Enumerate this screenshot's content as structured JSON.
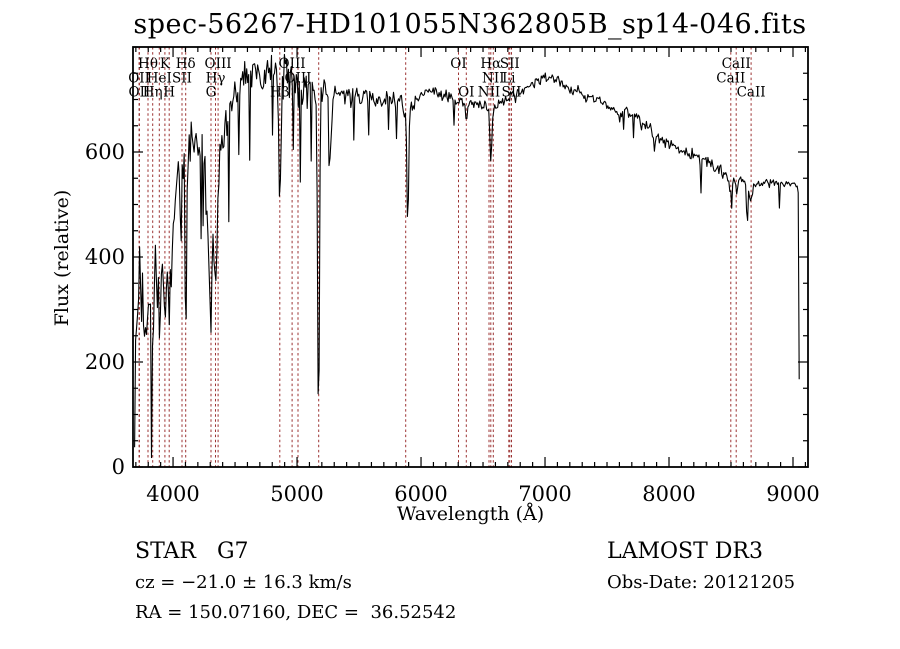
{
  "colors": {
    "background": "#ffffff",
    "spectrum": "#000000",
    "axis": "#000000",
    "line_marker": "#9c3333",
    "text": "#000000"
  },
  "footer": {
    "star_class": "STAR   G7",
    "cz": "cz = −21.0 ± 16.3 km/s",
    "radec": "RA = 150.07160, DEC =  36.52542",
    "survey": "LAMOST DR3",
    "obs_date": "Obs-Date: 20121205"
  },
  "chart_data": {
    "type": "line",
    "title": "spec-56267-HD101055N362805B_sp14-046.fits",
    "xlabel": "Wavelength (Å)",
    "ylabel": "Flux (relative)",
    "xlim": [
      3677,
      9121
    ],
    "ylim": [
      0,
      800
    ],
    "xticks": [
      4000,
      5000,
      6000,
      7000,
      8000,
      9000
    ],
    "yticks": [
      0,
      200,
      400,
      600
    ],
    "x_minor_step": 100,
    "y_minor_step": 50,
    "grid": false,
    "legend": false,
    "spectral_lines": [
      {
        "wavelength": 3726,
        "label": "OII",
        "row": 2
      },
      {
        "wavelength": 3729,
        "label": "OII",
        "row": 3
      },
      {
        "wavelength": 3798,
        "label": "Hθ",
        "row": 1
      },
      {
        "wavelength": 3836,
        "label": "Hη",
        "row": 3
      },
      {
        "wavelength": 3889,
        "label": "HeI",
        "row": 2
      },
      {
        "wavelength": 3934,
        "label": "K",
        "row": 1
      },
      {
        "wavelength": 3969,
        "label": "H",
        "row": 3
      },
      {
        "wavelength": 4072,
        "label": "SII",
        "row": 2
      },
      {
        "wavelength": 4102,
        "label": "Hδ",
        "row": 1
      },
      {
        "wavelength": 4306,
        "label": "G",
        "row": 3
      },
      {
        "wavelength": 4342,
        "label": "Hγ",
        "row": 2
      },
      {
        "wavelength": 4363,
        "label": "OIII",
        "row": 1
      },
      {
        "wavelength": 4861,
        "label": "Hβ",
        "row": 3
      },
      {
        "wavelength": 4960,
        "label": "OIII",
        "row": 1
      },
      {
        "wavelength": 5008,
        "label": "OIII",
        "row": 2
      },
      {
        "wavelength": 5175,
        "label": "",
        "row": 0
      },
      {
        "wavelength": 5876,
        "label": "",
        "row": 0
      },
      {
        "wavelength": 6302,
        "label": "OI",
        "row": 1
      },
      {
        "wavelength": 6365,
        "label": "OI",
        "row": 3
      },
      {
        "wavelength": 6548,
        "label": "NII",
        "row": 3
      },
      {
        "wavelength": 6563,
        "label": "Hα",
        "row": 1
      },
      {
        "wavelength": 6583,
        "label": "NII",
        "row": 2
      },
      {
        "wavelength": 6708,
        "label": "Li",
        "row": 2
      },
      {
        "wavelength": 6716,
        "label": "SII",
        "row": 1
      },
      {
        "wavelength": 6730,
        "label": "SII",
        "row": 3
      },
      {
        "wavelength": 8498,
        "label": "CaII",
        "row": 2
      },
      {
        "wavelength": 8542,
        "label": "CaII",
        "row": 1
      },
      {
        "wavelength": 8662,
        "label": "CaII",
        "row": 3
      }
    ],
    "series": [
      {
        "name": "spectrum",
        "color": "#000000",
        "note": "noisy stellar spectrum; anchors are [wavelength_A, flux_envelope, noise_sigma] estimates read from the plot",
        "anchors": [
          [
            3690,
            40,
            10
          ],
          [
            3698,
            280,
            85
          ],
          [
            3715,
            310,
            90
          ],
          [
            3740,
            330,
            90
          ],
          [
            3762,
            300,
            88
          ],
          [
            3785,
            270,
            85
          ],
          [
            3798,
            250,
            82
          ],
          [
            3815,
            320,
            80
          ],
          [
            3836,
            240,
            78
          ],
          [
            3858,
            350,
            72
          ],
          [
            3880,
            300,
            68
          ],
          [
            3896,
            280,
            65
          ],
          [
            3912,
            390,
            60
          ],
          [
            3934,
            265,
            58
          ],
          [
            3950,
            380,
            56
          ],
          [
            3969,
            280,
            55
          ],
          [
            3988,
            400,
            58
          ],
          [
            4010,
            480,
            55
          ],
          [
            4040,
            560,
            50
          ],
          [
            4070,
            600,
            46
          ],
          [
            4090,
            580,
            45
          ],
          [
            4102,
            170,
            40
          ],
          [
            4116,
            590,
            45
          ],
          [
            4150,
            615,
            45
          ],
          [
            4200,
            612,
            45
          ],
          [
            4250,
            600,
            45
          ],
          [
            4285,
            430,
            48
          ],
          [
            4306,
            240,
            45
          ],
          [
            4324,
            500,
            45
          ],
          [
            4342,
            300,
            42
          ],
          [
            4362,
            540,
            40
          ],
          [
            4400,
            625,
            38
          ],
          [
            4450,
            672,
            36
          ],
          [
            4500,
            712,
            35
          ],
          [
            4555,
            742,
            34
          ],
          [
            4610,
            748,
            34
          ],
          [
            4670,
            752,
            34
          ],
          [
            4730,
            756,
            33
          ],
          [
            4790,
            758,
            33
          ],
          [
            4845,
            745,
            30
          ],
          [
            4861,
            480,
            26
          ],
          [
            4880,
            742,
            30
          ],
          [
            4925,
            750,
            32
          ],
          [
            4970,
            740,
            38
          ],
          [
            5015,
            735,
            38
          ],
          [
            5060,
            730,
            38
          ],
          [
            5110,
            722,
            36
          ],
          [
            5158,
            700,
            26
          ],
          [
            5172,
            60,
            20
          ],
          [
            5190,
            700,
            25
          ],
          [
            5230,
            712,
            24
          ],
          [
            5255,
            702,
            22
          ],
          [
            5268,
            560,
            22
          ],
          [
            5286,
            704,
            22
          ],
          [
            5320,
            710,
            21
          ],
          [
            5380,
            710,
            20
          ],
          [
            5450,
            708,
            19
          ],
          [
            5520,
            706,
            18
          ],
          [
            5600,
            704,
            17
          ],
          [
            5680,
            701,
            17
          ],
          [
            5760,
            700,
            16
          ],
          [
            5840,
            696,
            15
          ],
          [
            5880,
            660,
            14
          ],
          [
            5893,
            420,
            12
          ],
          [
            5908,
            680,
            14
          ],
          [
            5970,
            706,
            14
          ],
          [
            6040,
            712,
            14
          ],
          [
            6110,
            714,
            14
          ],
          [
            6180,
            710,
            14
          ],
          [
            6250,
            702,
            13
          ],
          [
            6310,
            694,
            13
          ],
          [
            6355,
            690,
            13
          ],
          [
            6366,
            658,
            12
          ],
          [
            6380,
            688,
            13
          ],
          [
            6450,
            694,
            13
          ],
          [
            6520,
            688,
            12
          ],
          [
            6548,
            668,
            12
          ],
          [
            6563,
            575,
            11
          ],
          [
            6582,
            678,
            12
          ],
          [
            6640,
            694,
            12
          ],
          [
            6700,
            702,
            12
          ],
          [
            6770,
            712,
            12
          ],
          [
            6840,
            720,
            11
          ],
          [
            6910,
            730,
            11
          ],
          [
            6980,
            740,
            11
          ],
          [
            7040,
            742,
            11
          ],
          [
            7110,
            734,
            11
          ],
          [
            7180,
            724,
            11
          ],
          [
            7260,
            714,
            11
          ],
          [
            7340,
            705,
            11
          ],
          [
            7420,
            699,
            11
          ],
          [
            7500,
            688,
            11
          ],
          [
            7560,
            680,
            11
          ],
          [
            7600,
            662,
            11
          ],
          [
            7650,
            678,
            11
          ],
          [
            7720,
            670,
            11
          ],
          [
            7790,
            652,
            11
          ],
          [
            7860,
            640,
            12
          ],
          [
            7930,
            626,
            12
          ],
          [
            8000,
            615,
            12
          ],
          [
            8080,
            604,
            12
          ],
          [
            8160,
            596,
            13
          ],
          [
            8240,
            588,
            13
          ],
          [
            8320,
            578,
            13
          ],
          [
            8400,
            568,
            13
          ],
          [
            8460,
            558,
            13
          ],
          [
            8498,
            528,
            13
          ],
          [
            8520,
            550,
            12
          ],
          [
            8542,
            528,
            12
          ],
          [
            8565,
            548,
            12
          ],
          [
            8620,
            545,
            12
          ],
          [
            8662,
            512,
            11
          ],
          [
            8690,
            540,
            11
          ],
          [
            8760,
            542,
            11
          ],
          [
            8830,
            540,
            10
          ],
          [
            8900,
            542,
            10
          ],
          [
            8960,
            538,
            9
          ],
          [
            9010,
            536,
            8
          ],
          [
            9035,
            530,
            6
          ],
          [
            9042,
            522,
            4
          ],
          [
            9047,
            350,
            30
          ],
          [
            9052,
            60,
            15
          ],
          [
            9056,
            10,
            3
          ]
        ]
      }
    ]
  }
}
